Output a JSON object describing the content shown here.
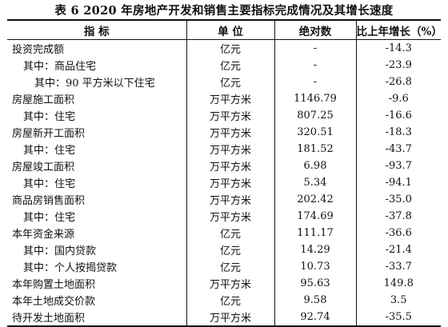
{
  "title": "表 6    2020 年房地产开发和销售主要指标完成情况及其增长速度",
  "headers": {
    "indicator": "指    标",
    "unit": "单    位",
    "absolute": "绝对数",
    "growth": "比上年增长（%）"
  },
  "rows": [
    {
      "indicator": "投资完成额",
      "level": 0,
      "unit": "亿元",
      "absolute": "-",
      "growth": "-14.3"
    },
    {
      "indicator": "其中：商品住宅",
      "level": 1,
      "unit": "亿元",
      "absolute": "-",
      "growth": "-23.9"
    },
    {
      "indicator": "其中：90 平方米以下住宅",
      "level": 2,
      "unit": "亿元",
      "absolute": "-",
      "growth": "-26.8"
    },
    {
      "indicator": "房屋施工面积",
      "level": 0,
      "unit": "万平方米",
      "absolute": "1146.79",
      "growth": "-9.6"
    },
    {
      "indicator": "其中：住宅",
      "level": 1,
      "unit": "万平方米",
      "absolute": "807.25",
      "growth": "-16.6"
    },
    {
      "indicator": "房屋新开工面积",
      "level": 0,
      "unit": "万平方米",
      "absolute": "320.51",
      "growth": "-18.3"
    },
    {
      "indicator": "其中：住宅",
      "level": 1,
      "unit": "万平方米",
      "absolute": "181.52",
      "growth": "-43.7"
    },
    {
      "indicator": "房屋竣工面积",
      "level": 0,
      "unit": "万平方米",
      "absolute": "6.98",
      "growth": "-93.7"
    },
    {
      "indicator": "其中：住宅",
      "level": 1,
      "unit": "万平方米",
      "absolute": "5.34",
      "growth": "-94.1"
    },
    {
      "indicator": "商品房销售面积",
      "level": 0,
      "unit": "万平方米",
      "absolute": "202.42",
      "growth": "-35.0"
    },
    {
      "indicator": "其中：住宅",
      "level": 1,
      "unit": "万平方米",
      "absolute": "174.69",
      "growth": "-37.8"
    },
    {
      "indicator": "本年资金来源",
      "level": 0,
      "unit": "亿元",
      "absolute": "111.17",
      "growth": "-36.6"
    },
    {
      "indicator": "其中：国内贷款",
      "level": 1,
      "unit": "亿元",
      "absolute": "14.29",
      "growth": "-21.4"
    },
    {
      "indicator": "其中：个人按揭贷款",
      "level": 1,
      "unit": "亿元",
      "absolute": "10.73",
      "growth": "-33.7"
    },
    {
      "indicator": "本年购置土地面积",
      "level": 0,
      "unit": "万平方米",
      "absolute": "95.63",
      "growth": "149.8"
    },
    {
      "indicator": "本年土地成交价款",
      "level": 0,
      "unit": "亿元",
      "absolute": "9.58",
      "growth": "3.5"
    },
    {
      "indicator": "待开发土地面积",
      "level": 0,
      "unit": "万平方米",
      "absolute": "92.74",
      "growth": "-35.5"
    }
  ]
}
